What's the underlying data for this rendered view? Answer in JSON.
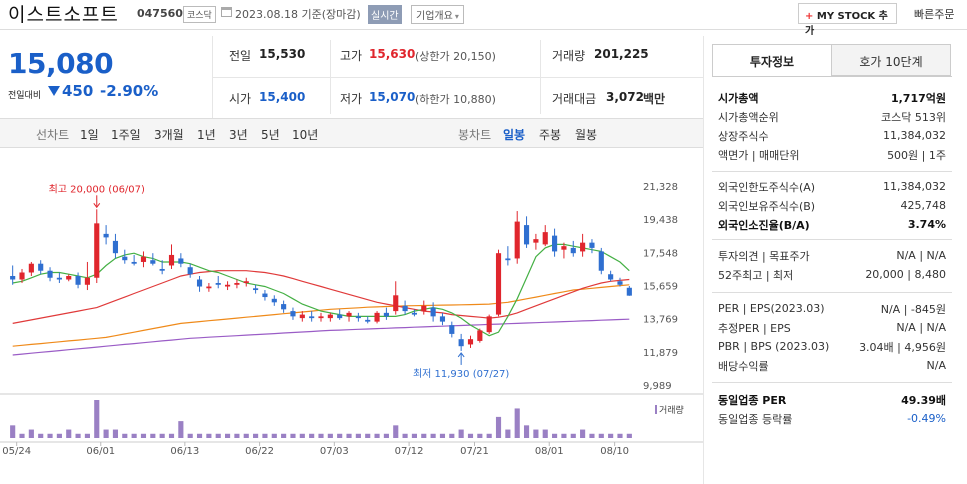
{
  "header": {
    "company": "이스트소프트",
    "code": "047560",
    "market": "코스닥",
    "date": "2023.08.18 기준(장마감)",
    "realtime_label": "실시간",
    "company_info_label": "기업개요",
    "mystock_label": "MY STOCK 추가",
    "quick_order_label": "빠른주문"
  },
  "price": {
    "current": "15,080",
    "change_label": "전일대비",
    "change": "450",
    "change_pct": "-2.90%"
  },
  "stats": {
    "prev_close_label": "전일",
    "prev_close": "15,530",
    "high_label": "고가",
    "high": "15,630",
    "upper_limit": "(상한가 20,150)",
    "volume_label": "거래량",
    "volume": "201,225",
    "open_label": "시가",
    "open": "15,400",
    "low_label": "저가",
    "low": "15,070",
    "lower_limit": "(하한가 10,880)",
    "amount_label": "거래대금",
    "amount": "3,072",
    "amount_unit": "백만"
  },
  "toolbar": {
    "line_chart": "선차트",
    "periods": [
      "1일",
      "1주일",
      "3개월",
      "1년",
      "3년",
      "5년",
      "10년"
    ],
    "candle_chart": "봉차트",
    "candle_periods": [
      "일봉",
      "주봉",
      "월봉"
    ]
  },
  "chart_data": {
    "type": "candlestick",
    "legend": [
      {
        "name": "5",
        "color": "#44b044"
      },
      {
        "name": "20",
        "color": "#e03a3a"
      },
      {
        "name": "60",
        "color": "#ef8a1a"
      },
      {
        "name": "120",
        "color": "#9a5cc6"
      }
    ],
    "y_ticks": [
      "21,328",
      "19,438",
      "17,548",
      "15,659",
      "13,769",
      "11,879",
      "9,989"
    ],
    "ylim": [
      9989,
      21328
    ],
    "x_ticks": [
      "05/24",
      "06/01",
      "06/13",
      "06/22",
      "07/03",
      "07/12",
      "07/21",
      "08/01",
      "08/10"
    ],
    "high_annotation": "최고 20,000 (06/07)",
    "low_annotation": "최저 11,930 (07/27)",
    "volume_label": "거래량",
    "candles": [
      [
        16200,
        16800,
        15700,
        16000
      ],
      [
        16000,
        16600,
        15800,
        16400
      ],
      [
        16400,
        17000,
        16200,
        16900
      ],
      [
        16900,
        17100,
        16300,
        16500
      ],
      [
        16500,
        16700,
        15900,
        16100
      ],
      [
        16100,
        16400,
        15800,
        16000
      ],
      [
        16000,
        16300,
        15900,
        16200
      ],
      [
        16200,
        16400,
        15500,
        15700
      ],
      [
        15700,
        17000,
        15400,
        16100
      ],
      [
        16100,
        20000,
        15800,
        19200
      ],
      [
        18600,
        19100,
        18000,
        18400
      ],
      [
        18200,
        18600,
        17200,
        17500
      ],
      [
        17300,
        17700,
        16900,
        17100
      ],
      [
        17000,
        17400,
        16800,
        16900
      ],
      [
        17000,
        17600,
        16700,
        17300
      ],
      [
        17100,
        17500,
        16800,
        16900
      ],
      [
        16600,
        17100,
        16300,
        16500
      ],
      [
        16800,
        18000,
        16600,
        17400
      ],
      [
        17200,
        17500,
        16700,
        16900
      ],
      [
        16700,
        16900,
        16100,
        16300
      ],
      [
        16000,
        16200,
        15300,
        15600
      ],
      [
        15500,
        15800,
        15300,
        15600
      ],
      [
        15800,
        16200,
        15500,
        15700
      ],
      [
        15600,
        15900,
        15400,
        15700
      ],
      [
        15700,
        16000,
        15500,
        15800
      ],
      [
        15800,
        16100,
        15600,
        15900
      ],
      [
        15500,
        15700,
        15200,
        15400
      ],
      [
        15200,
        15400,
        14800,
        15000
      ],
      [
        14900,
        15100,
        14500,
        14700
      ],
      [
        14600,
        14800,
        14100,
        14300
      ],
      [
        14200,
        14400,
        13700,
        13900
      ],
      [
        13800,
        14200,
        13600,
        14000
      ],
      [
        13900,
        14200,
        13600,
        13800
      ],
      [
        13800,
        14100,
        13600,
        13900
      ],
      [
        13800,
        14100,
        13600,
        14000
      ],
      [
        14000,
        14300,
        13700,
        13800
      ],
      [
        13900,
        14200,
        13600,
        14100
      ],
      [
        13900,
        14100,
        13600,
        13800
      ],
      [
        13700,
        13900,
        13500,
        13600
      ],
      [
        13600,
        14200,
        13500,
        14100
      ],
      [
        14100,
        14400,
        13700,
        13900
      ],
      [
        14200,
        15900,
        14000,
        15100
      ],
      [
        14500,
        14800,
        14000,
        14200
      ],
      [
        14100,
        14300,
        13900,
        14000
      ],
      [
        14200,
        14800,
        14000,
        14500
      ],
      [
        14400,
        14700,
        13600,
        13900
      ],
      [
        13900,
        14100,
        13400,
        13600
      ],
      [
        13400,
        13600,
        12700,
        12900
      ],
      [
        12600,
        12900,
        11930,
        12200
      ],
      [
        12300,
        12800,
        12100,
        12600
      ],
      [
        12500,
        13200,
        12400,
        13100
      ],
      [
        13000,
        14000,
        12900,
        13900
      ],
      [
        14000,
        17700,
        13900,
        17500
      ],
      [
        17200,
        17900,
        16800,
        17100
      ],
      [
        17200,
        19900,
        16900,
        19300
      ],
      [
        19100,
        19600,
        17800,
        18000
      ],
      [
        18100,
        18600,
        17700,
        18300
      ],
      [
        18000,
        19100,
        17900,
        18700
      ],
      [
        18500,
        18900,
        17300,
        17600
      ],
      [
        17700,
        18100,
        17200,
        17900
      ],
      [
        17800,
        18200,
        17300,
        17500
      ],
      [
        17600,
        18600,
        17300,
        18100
      ],
      [
        18100,
        18300,
        17500,
        17800
      ],
      [
        17600,
        17800,
        16300,
        16500
      ],
      [
        16300,
        16500,
        15900,
        16000
      ],
      [
        15900,
        16100,
        15600,
        15700
      ],
      [
        15530,
        15630,
        15070,
        15080
      ]
    ],
    "ma5": [
      15800,
      15900,
      16100,
      16300,
      16400,
      16400,
      16300,
      16200,
      16100,
      16300,
      16800,
      17200,
      17400,
      17500,
      17300,
      17200,
      17000,
      17000,
      17000,
      16900,
      16700,
      16500,
      16400,
      16200,
      16000,
      15800,
      15700,
      15600,
      15400,
      15200,
      14900,
      14600,
      14400,
      14200,
      14100,
      14000,
      13900,
      13900,
      13900,
      13900,
      13900,
      13900,
      14000,
      14200,
      14300,
      14400,
      14300,
      14100,
      13800,
      13400,
      13100,
      12800,
      13000,
      13900,
      14900,
      16100,
      17300,
      17800,
      18000,
      18000,
      17900,
      17800,
      17700,
      17600,
      17300,
      17000,
      16500
    ],
    "ma20": [
      13500,
      13600,
      13700,
      13800,
      13900,
      14000,
      14100,
      14200,
      14300,
      14400,
      14600,
      14800,
      15000,
      15200,
      15400,
      15600,
      15800,
      16000,
      16200,
      16300,
      16400,
      16450,
      16500,
      16500,
      16500,
      16500,
      16450,
      16400,
      16300,
      16200,
      16050,
      15900,
      15750,
      15600,
      15450,
      15300,
      15150,
      15000,
      14850,
      14700,
      14600,
      14500,
      14400,
      14300,
      14200,
      14150,
      14100,
      14000,
      13950,
      13900,
      13850,
      13800,
      13850,
      13950,
      14100,
      14300,
      14500,
      14700,
      14900,
      15100,
      15300,
      15500,
      15650,
      15800,
      15900,
      15950,
      16000
    ],
    "ma60": [
      12200,
      12250,
      12300,
      12350,
      12400,
      12450,
      12500,
      12550,
      12600,
      12650,
      12700,
      12800,
      12900,
      13000,
      13100,
      13200,
      13300,
      13400,
      13500,
      13550,
      13600,
      13650,
      13700,
      13750,
      13800,
      13850,
      13900,
      13950,
      14000,
      14050,
      14100,
      14150,
      14200,
      14250,
      14300,
      14330,
      14360,
      14390,
      14420,
      14440,
      14460,
      14480,
      14500,
      14510,
      14520,
      14530,
      14540,
      14550,
      14560,
      14570,
      14580,
      14600,
      14650,
      14700,
      14800,
      14900,
      15000,
      15100,
      15200,
      15300,
      15400,
      15450,
      15500,
      15550,
      15600,
      15650,
      15700
    ],
    "ma120": [
      11700,
      11750,
      11800,
      11850,
      11900,
      11950,
      12000,
      12050,
      12100,
      12150,
      12200,
      12250,
      12300,
      12350,
      12400,
      12450,
      12500,
      12550,
      12600,
      12650,
      12680,
      12710,
      12740,
      12770,
      12800,
      12830,
      12860,
      12890,
      12920,
      12950,
      12980,
      13010,
      13040,
      13070,
      13100,
      13120,
      13140,
      13160,
      13180,
      13200,
      13220,
      13240,
      13260,
      13280,
      13300,
      13320,
      13340,
      13360,
      13380,
      13400,
      13420,
      13440,
      13460,
      13480,
      13500,
      13520,
      13540,
      13560,
      13580,
      13600,
      13620,
      13640,
      13660,
      13680,
      13700,
      13720,
      13740
    ],
    "volumes": [
      3,
      1,
      2,
      1,
      1,
      1,
      2,
      1,
      1,
      9,
      2,
      2,
      1,
      1,
      1,
      1,
      1,
      1,
      4,
      1,
      1,
      1,
      1,
      1,
      1,
      1,
      1,
      1,
      1,
      1,
      1,
      1,
      1,
      1,
      1,
      1,
      1,
      1,
      1,
      1,
      1,
      3,
      1,
      1,
      1,
      1,
      1,
      1,
      2,
      1,
      1,
      1,
      5,
      2,
      7,
      3,
      2,
      2,
      1,
      1,
      1,
      2,
      1,
      1,
      1,
      1,
      1
    ]
  },
  "panel": {
    "tab_active": "투자정보",
    "tab_other": "호가 10단계",
    "rows1": [
      {
        "label": "시가총액",
        "value": "1,717억원",
        "bold": true
      },
      {
        "label": "시가총액순위",
        "value": "코스닥 513위"
      },
      {
        "label": "상장주식수",
        "value": "11,384,032"
      },
      {
        "label": "액면가 | 매매단위",
        "value": "500원 | 1주"
      }
    ],
    "rows2": [
      {
        "label": "외국인한도주식수(A)",
        "value": "11,384,032"
      },
      {
        "label": "외국인보유주식수(B)",
        "value": "425,748"
      },
      {
        "label": "외국인소진율(B/A)",
        "value": "3.74%",
        "bold": true
      }
    ],
    "rows3": [
      {
        "label": "투자의견 | 목표주가",
        "value": "N/A | N/A"
      },
      {
        "label": "52주최고 | 최저",
        "value": "20,000 | 8,480"
      }
    ],
    "rows4": [
      {
        "label": "PER | EPS(2023.03)",
        "value": "N/A | -845원"
      },
      {
        "label": "추정PER | EPS",
        "value": "N/A | N/A"
      },
      {
        "label": "PBR | BPS (2023.03)",
        "value": "3.04배 | 4,956원"
      },
      {
        "label": "배당수익률",
        "value": "N/A"
      }
    ],
    "rows5": [
      {
        "label": "동일업종 PER",
        "value": "49.39배",
        "bold": true
      },
      {
        "label": "동일업종 등락률",
        "value": "-0.49%",
        "blue": true
      }
    ]
  }
}
